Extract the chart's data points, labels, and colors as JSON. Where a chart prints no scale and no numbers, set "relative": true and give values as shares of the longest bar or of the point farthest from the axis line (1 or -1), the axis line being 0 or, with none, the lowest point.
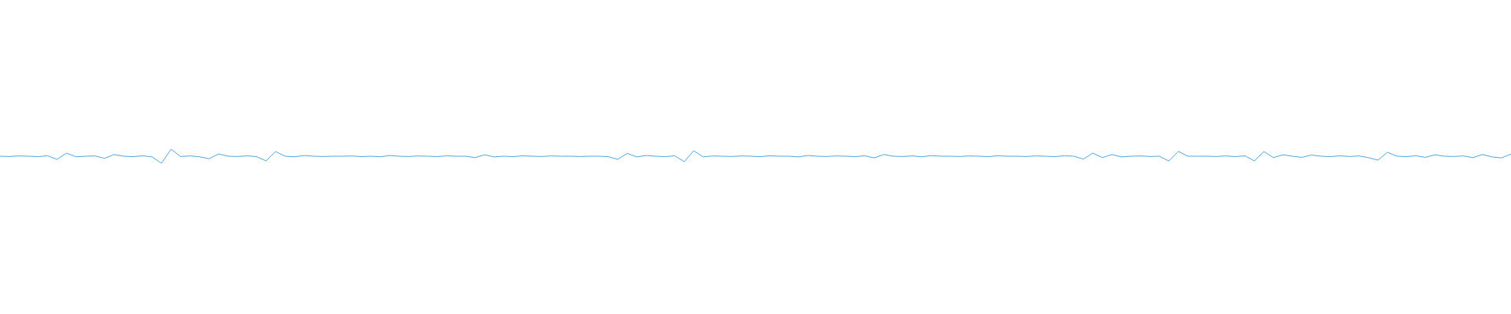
{
  "chart_data": {
    "type": "line",
    "relative": true,
    "categories": [
      null,
      null,
      null,
      null,
      null,
      null,
      null,
      null,
      null,
      null,
      null,
      null,
      null,
      null,
      null,
      null,
      null,
      null,
      null,
      null,
      null,
      null,
      null,
      null,
      null,
      null,
      null,
      null,
      null,
      null,
      null,
      null,
      null,
      null,
      null,
      null,
      null,
      null,
      null,
      null,
      null,
      null,
      null,
      null,
      null,
      null,
      null,
      null,
      null,
      null,
      null,
      null,
      null,
      null,
      null,
      null,
      null,
      null,
      null,
      null,
      null,
      null,
      null,
      null,
      null,
      null,
      null,
      null,
      null,
      null,
      null,
      null,
      null,
      null,
      null,
      null,
      null,
      null,
      null,
      null,
      null,
      null,
      null,
      null,
      null,
      null,
      null,
      null,
      null,
      null,
      null,
      null,
      null,
      null,
      null,
      null,
      null,
      null,
      null,
      null,
      null,
      null,
      null,
      null,
      null,
      null,
      null,
      null,
      null,
      null,
      null,
      null,
      null,
      null,
      null,
      null,
      null,
      null,
      null,
      null,
      null,
      null,
      null,
      null,
      null,
      null,
      null,
      null,
      null,
      null,
      null,
      null,
      null,
      null,
      null,
      null,
      null,
      null,
      null,
      null,
      null,
      null,
      null,
      null,
      null,
      null,
      null,
      null,
      null,
      null,
      null,
      null,
      null,
      null,
      null,
      null,
      null,
      null,
      null,
      null
    ],
    "series": [
      {
        "color": "#4da6e0",
        "values": [
          0.5,
          0.48,
          0.52,
          0.5,
          0.47,
          0.53,
          0.28,
          0.72,
          0.46,
          0.5,
          0.52,
          0.35,
          0.62,
          0.5,
          0.47,
          0.53,
          0.45,
          0,
          1,
          0.48,
          0.52,
          0.46,
          0.32,
          0.66,
          0.5,
          0.48,
          0.53,
          0.47,
          0.17,
          0.83,
          0.5,
          0.46,
          0.55,
          0.5,
          0.48,
          0.5,
          0.5,
          0.52,
          0.47,
          0.5,
          0.46,
          0.55,
          0.5,
          0.48,
          0.52,
          0.5,
          0.47,
          0.53,
          0.5,
          0.5,
          0.4,
          0.6,
          0.45,
          0.5,
          0.47,
          0.53,
          0.5,
          0.48,
          0.52,
          0.5,
          0.5,
          0.48,
          0.5,
          0.5,
          0.47,
          0.28,
          0.7,
          0.45,
          0.55,
          0.5,
          0.47,
          0.53,
          0.11,
          0.89,
          0.45,
          0.52,
          0.5,
          0.48,
          0.52,
          0.5,
          0.47,
          0.53,
          0.5,
          0.5,
          0.45,
          0.55,
          0.5,
          0.48,
          0.52,
          0.5,
          0.47,
          0.53,
          0.38,
          0.62,
          0.5,
          0.48,
          0.52,
          0.46,
          0.54,
          0.5,
          0.5,
          0.48,
          0.52,
          0.5,
          0.47,
          0.53,
          0.5,
          0.5,
          0.48,
          0.52,
          0.5,
          0.47,
          0.53,
          0.5,
          0.3,
          0.72,
          0.4,
          0.62,
          0.45,
          0.5,
          0.52,
          0.48,
          0.5,
          0.16,
          0.84,
          0.5,
          0.5,
          0.5,
          0.48,
          0.52,
          0.47,
          0.53,
          0.17,
          0.83,
          0.4,
          0.6,
          0.5,
          0.42,
          0.58,
          0.5,
          0.47,
          0.53,
          0.48,
          0.52,
          0.4,
          0.22,
          0.78,
          0.5,
          0.47,
          0.53,
          0.42,
          0.6,
          0.5,
          0.48,
          0.52,
          0.4,
          0.62,
          0.45,
          0.38,
          0.65
        ]
      }
    ]
  }
}
